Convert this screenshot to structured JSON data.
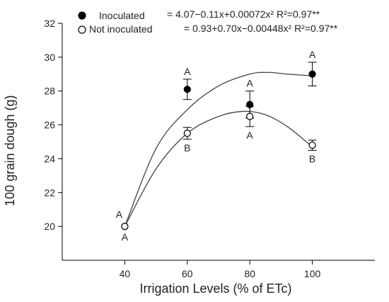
{
  "chart_data": {
    "type": "scatter",
    "xlabel": "Irrigation Levels (% of ETc)",
    "ylabel": "100 grain dough (g)",
    "xlim": [
      20,
      120
    ],
    "ylim": [
      18,
      32
    ],
    "xticks": [
      40,
      60,
      80,
      100
    ],
    "yticks": [
      20,
      22,
      24,
      26,
      28,
      30,
      32
    ],
    "grid": false,
    "legend_position": "top",
    "series": [
      {
        "name": "Inoculated",
        "equation": "= 4.07−0.11x+0.00072x² R²=0.97**",
        "marker": "filled-circle",
        "color": "#000000",
        "points": [
          {
            "x": 40,
            "y": 20.0,
            "err": 0.0,
            "letter": "A"
          },
          {
            "x": 60,
            "y": 28.1,
            "err": 0.6,
            "letter": "A"
          },
          {
            "x": 80,
            "y": 27.2,
            "err": 0.8,
            "letter": "A"
          },
          {
            "x": 100,
            "y": 29.0,
            "err": 0.7,
            "letter": "A"
          }
        ],
        "fit_curve": [
          [
            40,
            20.0
          ],
          [
            50,
            24.6
          ],
          [
            60,
            26.9
          ],
          [
            70,
            28.3
          ],
          [
            80,
            29.0
          ],
          [
            86,
            29.1
          ],
          [
            92,
            29.0
          ],
          [
            100,
            28.9
          ]
        ]
      },
      {
        "name": "Not inoculated",
        "equation": "= 0.93+0.70x−0.00448x² R²=0.97**",
        "marker": "open-circle",
        "color": "#000000",
        "points": [
          {
            "x": 40,
            "y": 20.0,
            "err": 0.0,
            "letter": "A"
          },
          {
            "x": 60,
            "y": 25.5,
            "err": 0.35,
            "letter": "B"
          },
          {
            "x": 80,
            "y": 26.5,
            "err": 0.6,
            "letter": "A"
          },
          {
            "x": 100,
            "y": 24.8,
            "err": 0.3,
            "letter": "B"
          }
        ],
        "fit_curve": [
          [
            40,
            20.0
          ],
          [
            50,
            23.4
          ],
          [
            60,
            25.5
          ],
          [
            70,
            26.5
          ],
          [
            78,
            26.8
          ],
          [
            85,
            26.6
          ],
          [
            92,
            25.9
          ],
          [
            100,
            24.7
          ]
        ]
      }
    ]
  }
}
